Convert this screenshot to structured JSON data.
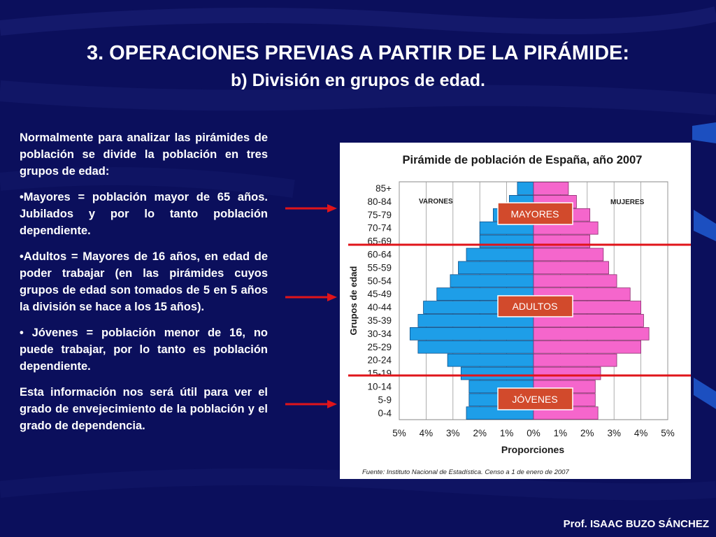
{
  "slide": {
    "title": "3. OPERACIONES PREVIAS A PARTIR DE LA PIRÁMIDE:",
    "subtitle": "b) División en grupos de edad.",
    "paragraphs": [
      "Normalmente para analizar las pirámides de población se divide la población en tres grupos de edad:",
      "•Mayores = población mayor de 65 años. Jubilados y por lo tanto población dependiente.",
      "•Adultos = Mayores de 16 años, en edad de poder trabajar (en las pirámides cuyos grupos de edad son tomados de 5 en 5 años la división se hace a los 15 años).",
      "• Jóvenes = población menor de 16, no puede trabajar, por lo tanto es población dependiente.",
      "Esta información nos será útil para ver el grado de envejecimiento de la población y el grado de dependencia."
    ],
    "footer": "Prof. ISAAC BUZO SÁNCHEZ",
    "colors": {
      "background": "#0b0f5c",
      "arrow": "#e0141a",
      "divider": "#e0141a",
      "label_box": "#d24a2c",
      "male": "#1e9ee8",
      "female": "#f566cc"
    }
  },
  "group_labels": {
    "mayores": "MAYORES",
    "adultos": "ADULTOS",
    "jovenes": "JÓVENES"
  },
  "chart_data": {
    "type": "bar",
    "orientation": "horizontal-pyramid",
    "title": "Pirámide de población de España, año 2007",
    "xlabel": "Proporciones",
    "ylabel": "Grupos de edad",
    "left_label": "VARONES",
    "right_label": "MUJERES",
    "source": "Fuente: Instituto Nacional de Estadística. Censo a 1 de enero de 2007",
    "x_ticks": [
      "5%",
      "4%",
      "3%",
      "2%",
      "1%",
      "0%",
      "1%",
      "2%",
      "3%",
      "4%",
      "5%"
    ],
    "xlim": [
      -5,
      5
    ],
    "grid": true,
    "categories": [
      "85+",
      "80-84",
      "75-79",
      "70-74",
      "65-69",
      "60-64",
      "55-59",
      "50-54",
      "45-49",
      "40-44",
      "35-39",
      "30-34",
      "25-29",
      "20-24",
      "15-19",
      "10-14",
      "5-9",
      "0-4"
    ],
    "series": [
      {
        "name": "VARONES",
        "values": [
          0.6,
          0.9,
          1.5,
          2.0,
          2.0,
          2.5,
          2.8,
          3.1,
          3.6,
          4.1,
          4.3,
          4.6,
          4.3,
          3.2,
          2.7,
          2.4,
          2.4,
          2.5
        ]
      },
      {
        "name": "MUJERES",
        "values": [
          1.3,
          1.6,
          2.1,
          2.4,
          2.1,
          2.6,
          2.8,
          3.1,
          3.6,
          4.0,
          4.1,
          4.3,
          4.0,
          3.1,
          2.5,
          2.3,
          2.3,
          2.4
        ]
      }
    ]
  }
}
